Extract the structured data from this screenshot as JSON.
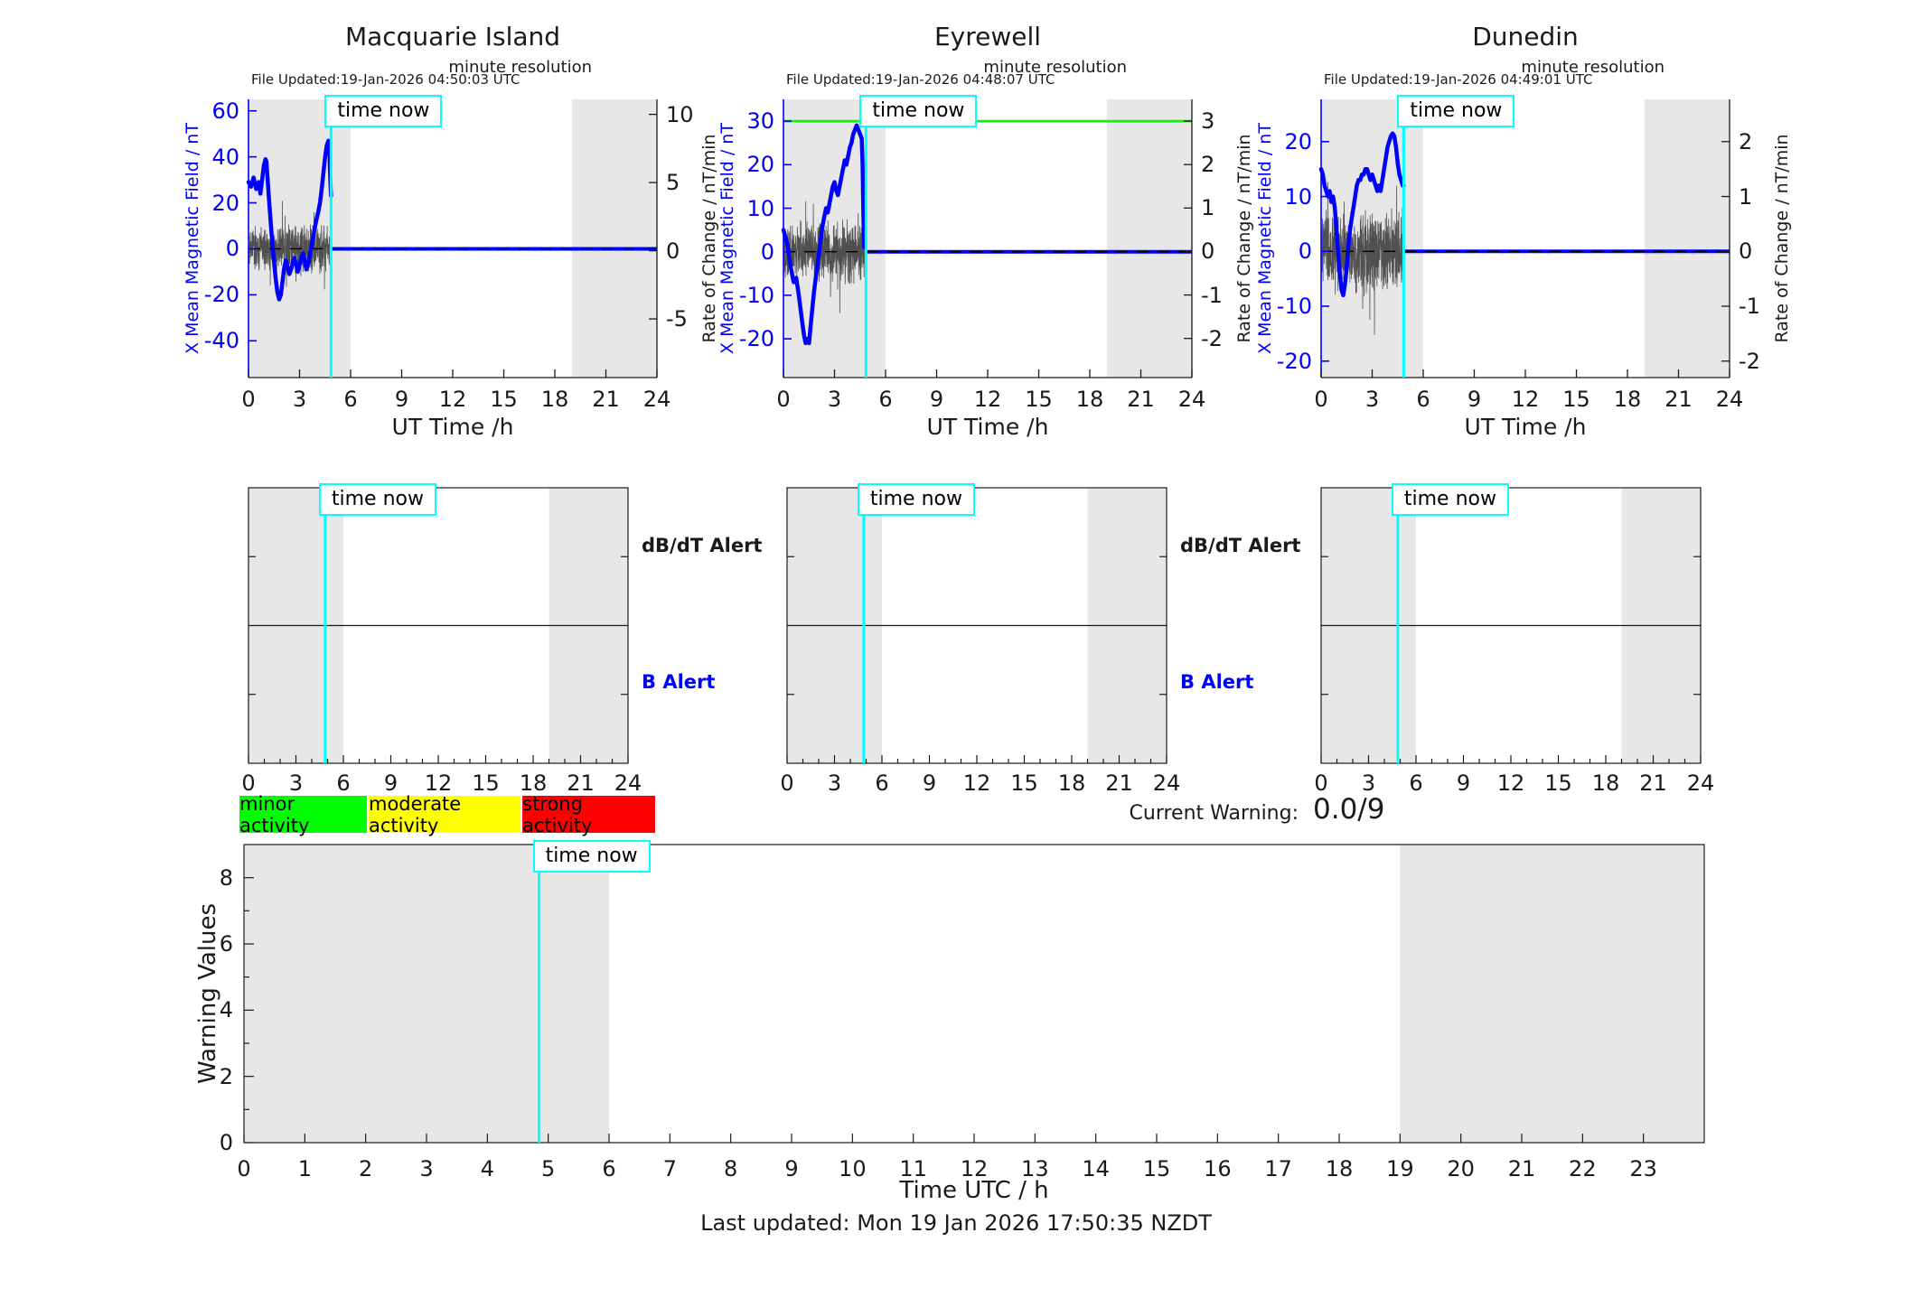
{
  "time_now_label": "time now",
  "colors": {
    "blue": "#0000ff",
    "cyan": "#00ffff",
    "green": "#00ff00",
    "shade": "#e7e7e7",
    "axis": "#1a1a1a",
    "noise": "#3f3f3f",
    "minor": "#00ff00",
    "moderate": "#ffff00",
    "strong": "#ff0000"
  },
  "legend": {
    "items": [
      {
        "label": "minor activity",
        "color": "#00ff00"
      },
      {
        "label": "moderate activity",
        "color": "#ffff00"
      },
      {
        "label": "strong activity",
        "color": "#ff0000"
      }
    ]
  },
  "current_warning": {
    "label": "Current Warning:",
    "value": "0.0/9"
  },
  "footer": {
    "last_updated": "Last updated: Mon 19 Jan 2026 17:50:35 NZDT"
  },
  "chart_data": {
    "stations": [
      {
        "type": "line",
        "name": "Macquarie Island",
        "file_updated": "File Updated:19-Jan-2026 04:50:03 UTC",
        "resolution_note": "minute resolution",
        "xlabel": "UT Time /h",
        "ylabel_left": "X Mean Magnetic Field / nT",
        "ylabel_right": "Rate of Change / nT/min",
        "xlim": [
          0,
          24
        ],
        "xticks": [
          0,
          3,
          6,
          9,
          12,
          15,
          18,
          21,
          24
        ],
        "ylim_left": [
          -56,
          65
        ],
        "yticks_left": [
          60,
          40,
          20,
          0,
          -20,
          -40
        ],
        "ylim_right": [
          -9.3,
          11.1
        ],
        "yticks_right": [
          10,
          5,
          0,
          -5
        ],
        "threshold_green": null,
        "time_now": 4.85,
        "shaded_hours": [
          [
            0,
            6
          ],
          [
            19,
            24
          ]
        ],
        "flat_after_time_now": 0,
        "series_x": [
          0,
          0.15,
          0.3,
          0.45,
          0.6,
          0.7,
          0.8,
          0.9,
          1.0,
          1.05,
          1.1,
          1.2,
          1.3,
          1.4,
          1.5,
          1.6,
          1.7,
          1.8,
          1.9,
          2.0,
          2.1,
          2.2,
          2.3,
          2.4,
          2.5,
          2.6,
          2.7,
          2.8,
          2.9,
          3.0,
          3.1,
          3.2,
          3.3,
          3.4,
          3.5,
          3.6,
          3.7,
          3.8,
          3.9,
          4.0,
          4.1,
          4.2,
          4.3,
          4.4,
          4.5,
          4.6,
          4.7,
          4.75,
          4.8,
          4.85
        ],
        "series_y": [
          29,
          27,
          31,
          26,
          29,
          24,
          30,
          36,
          39,
          38,
          33,
          22,
          12,
          2,
          -6,
          -13,
          -19,
          -22,
          -20,
          -14,
          -8,
          -5,
          -8,
          -11,
          -9,
          -6,
          -4,
          -7,
          -10,
          -7,
          -4,
          -2,
          -5,
          -9,
          -7,
          -3,
          1,
          5,
          9,
          13,
          16,
          20,
          26,
          33,
          40,
          45,
          47,
          43,
          31,
          23
        ],
        "noise": {
          "seed": 11,
          "amp": 10,
          "clip": [
            -35,
            32
          ]
        }
      },
      {
        "type": "line",
        "name": "Eyrewell",
        "file_updated": "File Updated:19-Jan-2026 04:48:07 UTC",
        "resolution_note": "minute resolution",
        "xlabel": "UT Time /h",
        "ylabel_left": "X Mean Magnetic Field / nT",
        "ylabel_right": "Rate of Change / nT/min",
        "xlim": [
          0,
          24
        ],
        "xticks": [
          0,
          3,
          6,
          9,
          12,
          15,
          18,
          21,
          24
        ],
        "ylim_left": [
          -28.9,
          35
        ],
        "yticks_left": [
          30,
          20,
          10,
          0,
          -10,
          -20
        ],
        "ylim_right": [
          -2.9,
          3.5
        ],
        "yticks_right": [
          3,
          2,
          1,
          0,
          -1,
          -2
        ],
        "threshold_green": 30,
        "time_now": 4.85,
        "shaded_hours": [
          [
            0,
            6
          ],
          [
            19,
            24
          ]
        ],
        "flat_after_time_now": 0,
        "series_x": [
          0,
          0.15,
          0.3,
          0.45,
          0.6,
          0.75,
          0.9,
          1.0,
          1.1,
          1.2,
          1.3,
          1.4,
          1.5,
          1.6,
          1.7,
          1.8,
          1.9,
          2.0,
          2.1,
          2.2,
          2.3,
          2.4,
          2.5,
          2.6,
          2.7,
          2.8,
          2.9,
          3.0,
          3.1,
          3.2,
          3.3,
          3.4,
          3.5,
          3.6,
          3.7,
          3.8,
          3.9,
          4.0,
          4.1,
          4.2,
          4.3,
          4.4,
          4.5,
          4.6,
          4.65,
          4.7,
          4.75
        ],
        "series_y": [
          5,
          3,
          0,
          -4,
          -7,
          -6,
          -10,
          -13,
          -16,
          -19,
          -21,
          -20,
          -21,
          -17,
          -13,
          -9,
          -6,
          -3,
          0,
          3,
          6,
          8,
          10,
          9,
          11,
          13,
          15,
          16,
          14,
          13,
          15,
          17,
          19,
          21,
          20,
          22,
          24,
          25,
          27,
          28,
          29,
          28,
          27,
          26,
          20,
          8,
          1
        ],
        "noise": {
          "seed": 22,
          "amp": 6.5,
          "clip": [
            -17,
            17
          ]
        }
      },
      {
        "type": "line",
        "name": "Dunedin",
        "file_updated": "File Updated:19-Jan-2026 04:49:01 UTC",
        "resolution_note": "minute resolution",
        "xlabel": "UT Time /h",
        "ylabel_left": "X Mean Magnetic Field / nT",
        "ylabel_right": "Rate of Change / nT/min",
        "xlim": [
          0,
          24
        ],
        "xticks": [
          0,
          3,
          6,
          9,
          12,
          15,
          18,
          21,
          24
        ],
        "ylim_left": [
          -23,
          27.7
        ],
        "yticks_left": [
          20,
          10,
          0,
          -10,
          -20
        ],
        "ylim_right": [
          -2.3,
          2.77
        ],
        "yticks_right": [
          2,
          1,
          0,
          -1,
          -2
        ],
        "threshold_green": null,
        "time_now": 4.85,
        "shaded_hours": [
          [
            0,
            6
          ],
          [
            19,
            24
          ]
        ],
        "flat_after_time_now": 0,
        "series_x": [
          0,
          0.1,
          0.2,
          0.3,
          0.4,
          0.5,
          0.6,
          0.7,
          0.8,
          0.9,
          1.0,
          1.1,
          1.2,
          1.3,
          1.4,
          1.5,
          1.6,
          1.7,
          1.8,
          1.9,
          2.0,
          2.1,
          2.2,
          2.3,
          2.4,
          2.5,
          2.6,
          2.7,
          2.8,
          2.9,
          3.0,
          3.1,
          3.2,
          3.3,
          3.4,
          3.5,
          3.6,
          3.7,
          3.8,
          3.9,
          4.0,
          4.1,
          4.2,
          4.3,
          4.4,
          4.5,
          4.6,
          4.7,
          4.8,
          4.85
        ],
        "series_y": [
          15,
          14,
          12,
          11,
          10,
          11,
          9,
          10,
          8,
          4,
          0,
          -4,
          -7,
          -8,
          -6,
          -3,
          1,
          4,
          6,
          8,
          10,
          12,
          13,
          13,
          14,
          14,
          15,
          15,
          14,
          13,
          14,
          13,
          12,
          11,
          12,
          11,
          13,
          15,
          17,
          19,
          20,
          21,
          21.5,
          21,
          19,
          16,
          14,
          13,
          12,
          12
        ],
        "noise": {
          "seed": 33,
          "amp": 7,
          "clip": [
            -18.5,
            18.5
          ]
        }
      }
    ],
    "alert_panels": {
      "type": "alert-timeline",
      "xlim": [
        0,
        24
      ],
      "xticks": [
        0,
        3,
        6,
        9,
        12,
        15,
        18,
        21,
        24
      ],
      "time_now": 4.85,
      "shaded_hours": [
        [
          0,
          6
        ],
        [
          19,
          24
        ]
      ],
      "labels": {
        "dbdt": "dB/dT Alert",
        "b": "B Alert"
      },
      "alerts_plotted": "none",
      "panels": [
        {
          "station": "Macquarie Island",
          "show_side_labels": true
        },
        {
          "station": "Eyrewell",
          "show_side_labels": true
        },
        {
          "station": "Dunedin",
          "show_side_labels": false
        }
      ]
    },
    "warning_chart": {
      "type": "line",
      "ylabel": "Warning Values",
      "xlabel": "Time UTC / h",
      "ylim": [
        0,
        9
      ],
      "yticks": [
        0,
        2,
        4,
        6,
        8
      ],
      "yticks_minor": [
        1,
        3,
        5,
        7
      ],
      "xlim": [
        0,
        24
      ],
      "xticks": [
        0,
        1,
        2,
        3,
        4,
        5,
        6,
        7,
        8,
        9,
        10,
        11,
        12,
        13,
        14,
        15,
        16,
        17,
        18,
        19,
        20,
        21,
        22,
        23
      ],
      "time_now": 4.85,
      "shaded_hours": [
        [
          0,
          6
        ],
        [
          19,
          24
        ]
      ],
      "series_x": [],
      "series_y": []
    }
  }
}
